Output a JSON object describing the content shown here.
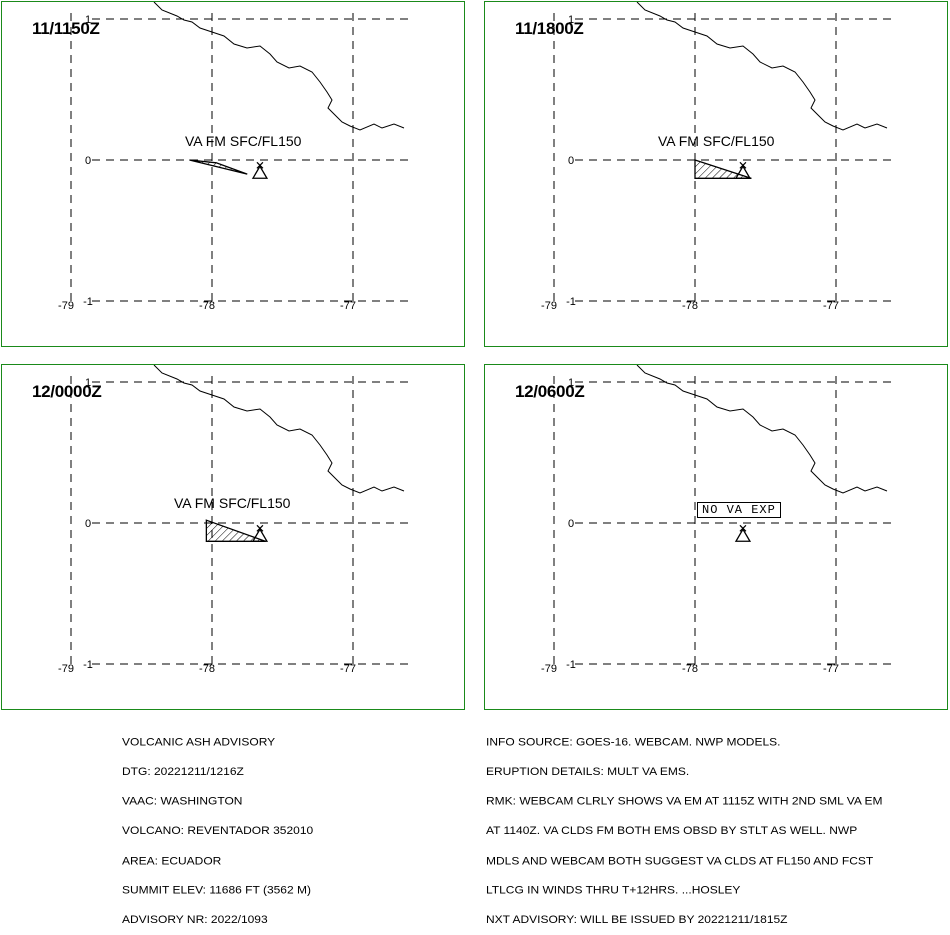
{
  "panels": [
    {
      "time": "11/1150Z",
      "label": "VA FM SFC/FL150",
      "show_polygon": true,
      "polygon": [
        [
          -78.16,
          0.0
        ],
        [
          -77.75,
          -0.1
        ],
        [
          -77.97,
          -0.02
        ]
      ]
    },
    {
      "time": "11/1800Z",
      "label": "VA FM SFC/FL150",
      "show_polygon": true,
      "polygon": [
        [
          -78.0,
          0.0
        ],
        [
          -77.6,
          -0.13
        ],
        [
          -78.0,
          -0.13
        ]
      ]
    },
    {
      "time": "12/0000Z",
      "label": "VA FM SFC/FL150",
      "show_polygon": true,
      "polygon": [
        [
          -78.04,
          0.02
        ],
        [
          -77.62,
          -0.13
        ],
        [
          -78.04,
          -0.13
        ]
      ]
    },
    {
      "time": "12/0600Z",
      "label": "NO VA EXP",
      "show_polygon": false,
      "polygon": []
    }
  ],
  "axes": {
    "lat_ticks": [
      "1",
      "0",
      "-1"
    ],
    "lon_ticks": [
      "-79",
      "-78",
      "-77"
    ],
    "lat_range": [
      -1,
      1
    ],
    "lon_range": [
      -79,
      -77
    ]
  },
  "volcano": {
    "lon": -77.66,
    "lat": -0.08
  },
  "advisory_left": [
    "VOLCANIC ASH ADVISORY",
    "DTG: 20221211/1216Z",
    "VAAC: WASHINGTON",
    "VOLCANO: REVENTADOR 352010",
    "AREA: ECUADOR",
    "SUMMIT ELEV: 11686 FT (3562 M)",
    "ADVISORY NR: 2022/1093"
  ],
  "advisory_right": [
    "INFO SOURCE: GOES-16. WEBCAM. NWP MODELS.",
    "ERUPTION DETAILS: MULT VA EMS.",
    "RMK: WEBCAM CLRLY SHOWS VA EM AT 1115Z WITH 2ND SML VA EM",
    "AT 1140Z. VA CLDS FM BOTH EMS OBSD BY STLT AS WELL. NWP",
    "MDLS AND WEBCAM BOTH SUGGEST VA CLDS AT FL150 AND FCST",
    "LTLCG IN WINDS THRU T+12HRS. ...HOSLEY",
    "NXT ADVISORY: WILL BE ISSUED BY 20221211/1815Z"
  ]
}
